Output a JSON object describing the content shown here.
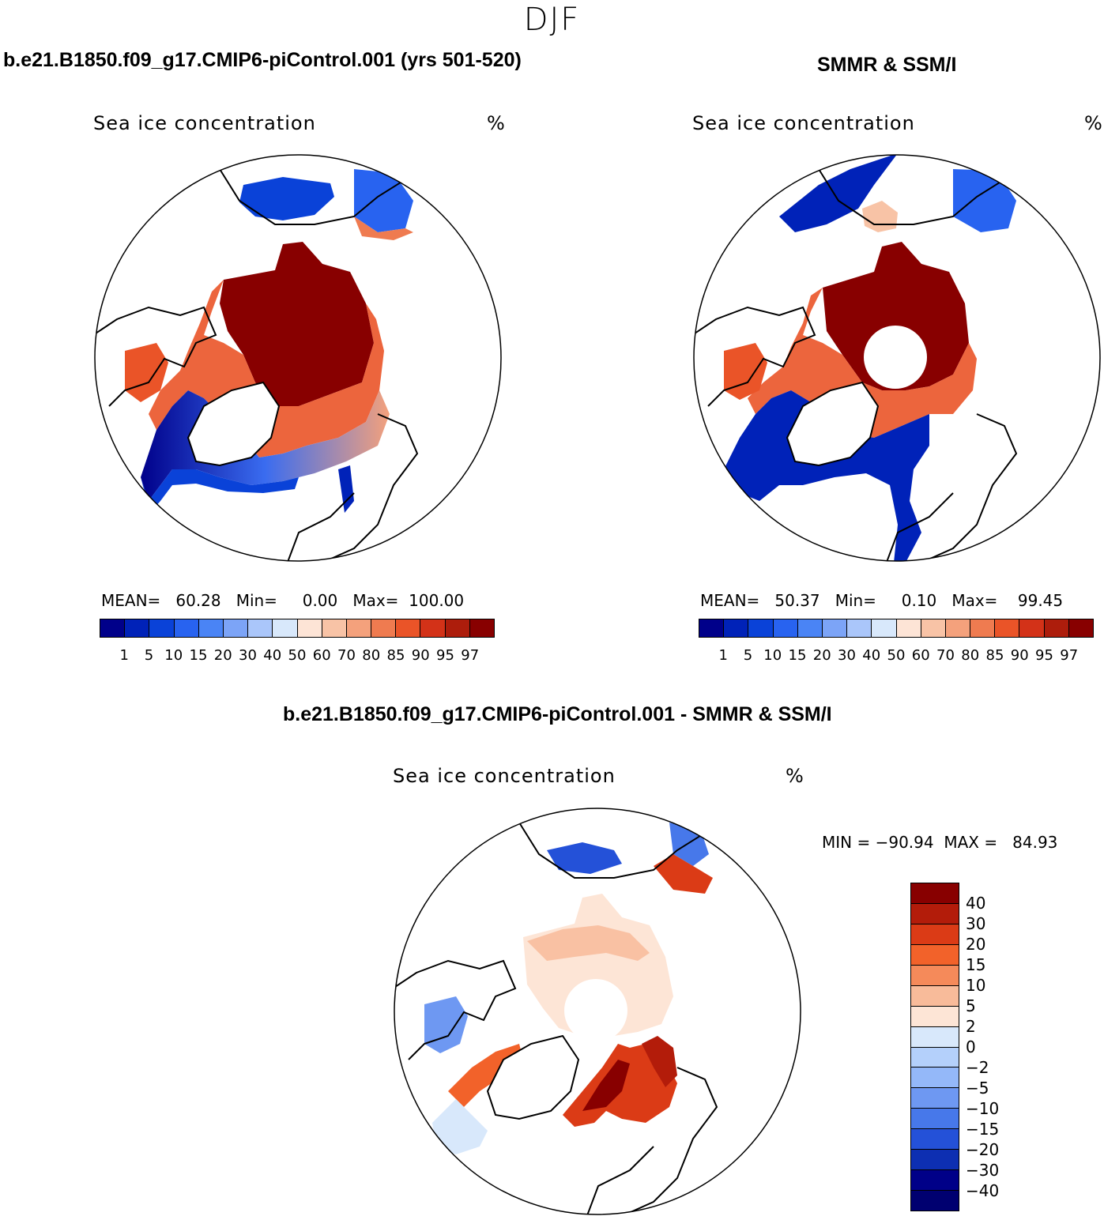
{
  "main_title": "DJF",
  "panels": {
    "model": {
      "title": "b.e21.B1850.f09_g17.CMIP6-piControl.001 (yrs 501-520)",
      "var_label": "Sea ice concentration",
      "units": "%",
      "stats": "MEAN=   60.28   Min=     0.00   Max=  100.00"
    },
    "obs": {
      "title": "SMMR & SSM/I",
      "var_label": "Sea ice concentration",
      "units": "%",
      "stats": "MEAN=   50.37   Min=     0.10   Max=    99.45"
    },
    "diff": {
      "title": "b.e21.B1850.f09_g17.CMIP6-piControl.001 - SMMR & SSM/I",
      "var_label": "Sea ice concentration",
      "units": "%",
      "stats": "MIN = −90.94  MAX =   84.93"
    }
  },
  "chart_data": [
    {
      "type": "heatmap",
      "subtype": "polar-stereographic map, Northern Hemisphere",
      "title": "b.e21.B1850.f09_g17.CMIP6-piControl.001 (yrs 501-520)",
      "variable": "Sea ice concentration",
      "units": "%",
      "mean": 60.28,
      "min": 0.0,
      "max": 100.0,
      "colorbar_levels": [
        "1",
        "5",
        "10",
        "15",
        "20",
        "30",
        "40",
        "50",
        "60",
        "70",
        "80",
        "85",
        "90",
        "95",
        "97"
      ],
      "colorbar_colors": [
        "#00008a",
        "#0022b8",
        "#0a42d8",
        "#2863f0",
        "#4a84f5",
        "#7ca4f7",
        "#aac6fa",
        "#d8e8fb",
        "#fde4d6",
        "#f8c3a6",
        "#f4a17c",
        "#ef7b50",
        "#ea5428",
        "#d33218",
        "#ad1d0c",
        "#880000"
      ]
    },
    {
      "type": "heatmap",
      "subtype": "polar-stereographic map, Northern Hemisphere",
      "title": "SMMR & SSM/I",
      "variable": "Sea ice concentration",
      "units": "%",
      "mean": 50.37,
      "min": 0.1,
      "max": 99.45,
      "colorbar_levels": [
        "1",
        "5",
        "10",
        "15",
        "20",
        "30",
        "40",
        "50",
        "60",
        "70",
        "80",
        "85",
        "90",
        "95",
        "97"
      ]
    },
    {
      "type": "heatmap",
      "subtype": "polar-stereographic difference map",
      "title": "b.e21.B1850.f09_g17.CMIP6-piControl.001 - SMMR & SSM/I",
      "variable": "Sea ice concentration",
      "units": "%",
      "min": -90.94,
      "max": 84.93,
      "colorbar_levels": [
        "40",
        "30",
        "20",
        "15",
        "10",
        "5",
        "2",
        "0",
        "−2",
        "−5",
        "−10",
        "−15",
        "−20",
        "−30",
        "−40"
      ],
      "colorbar_colors": [
        "#880000",
        "#b31c0a",
        "#db3b16",
        "#f2622a",
        "#f58a5a",
        "#f8bb9a",
        "#fde5d6",
        "#d8e8fb",
        "#b4d0fb",
        "#94b8f9",
        "#6e98f2",
        "#4778ea",
        "#2451d8",
        "#0d2fb2",
        "#000088"
      ]
    }
  ]
}
